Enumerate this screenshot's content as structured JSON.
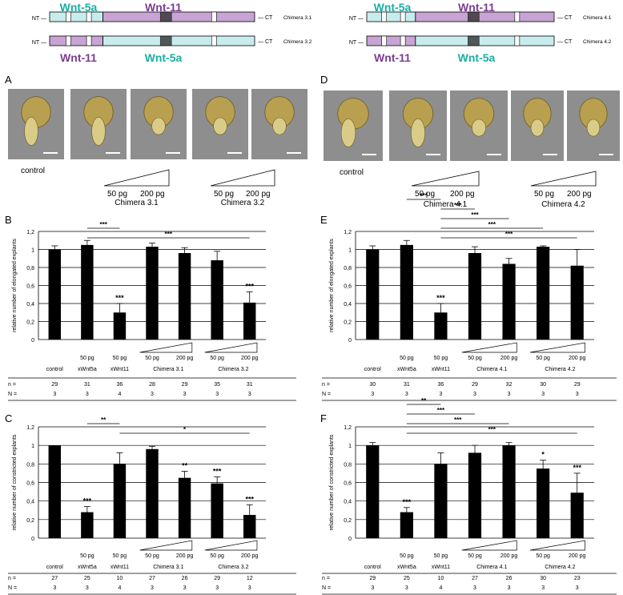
{
  "colors": {
    "wnt5a": "#1aaea0",
    "wnt11": "#7a3d91",
    "wnt5a_fill": "#c8ecec",
    "wnt11_fill": "#c7a4d3",
    "bar": "#000000",
    "photo_bg": "#8e8e8e"
  },
  "constructs": {
    "nt": "NT",
    "ct": "CT",
    "wnt5a": "Wnt-5a",
    "wnt11": "Wnt-11",
    "chimera_31": "Chimera 3.1",
    "chimera_32": "Chimera 3.2",
    "chimera_41": "Chimera 4.1",
    "chimera_42": "Chimera 4.2"
  },
  "photo_panels": [
    {
      "letter": "A",
      "control": "control",
      "groups": [
        {
          "low": "50 pg",
          "high": "200 pg",
          "name": "Chimera 3.1"
        },
        {
          "low": "50 pg",
          "high": "200 pg",
          "name": "Chimera 3.2"
        }
      ]
    },
    {
      "letter": "D",
      "control": "control",
      "groups": [
        {
          "low": "50 pg",
          "high": "200 pg",
          "name": "Chimera 4.1"
        },
        {
          "low": "50 pg",
          "high": "200 pg",
          "name": "Chimera 4.2"
        }
      ]
    }
  ],
  "table_labels": {
    "n": "n =",
    "N": "N ="
  },
  "chart_data": [
    {
      "panel": "B",
      "type": "bar",
      "ylabel": "relative number of elongated explants",
      "ylim": [
        0,
        1.2
      ],
      "yticks": [
        "0",
        "0,2",
        "0,4",
        "0,6",
        "0,8",
        "1",
        "1,2"
      ],
      "grid": true,
      "categories": [
        "control",
        "xWnt5a",
        "xWnt11",
        "Chimera 3.1",
        "Chimera 3.1",
        "Chimera 3.2",
        "Chimera 3.2"
      ],
      "dose_labels": [
        "",
        "50 pg",
        "50 pg",
        "50 pg",
        "200 pg",
        "50 pg",
        "200 pg"
      ],
      "group_labels": [
        "control",
        "xWnt5a",
        "xWnt11",
        "Chimera 3.1",
        "Chimera 3.2"
      ],
      "values": [
        1.0,
        1.05,
        0.3,
        1.03,
        0.96,
        0.88,
        0.41
      ],
      "errors": [
        0.04,
        0.05,
        0.1,
        0.04,
        0.06,
        0.1,
        0.12
      ],
      "sig": [
        "",
        "",
        "***",
        "",
        "",
        "",
        "***"
      ],
      "brackets": [
        {
          "from": 1,
          "to": 2,
          "label": "***"
        },
        {
          "from": 1,
          "to": 6,
          "label": "***"
        }
      ],
      "n": [
        "29",
        "31",
        "36",
        "28",
        "29",
        "35",
        "31"
      ],
      "N": [
        "3",
        "3",
        "4",
        "3",
        "3",
        "3",
        "3"
      ]
    },
    {
      "panel": "E",
      "type": "bar",
      "ylabel": "relative number of elongated explants",
      "ylim": [
        0,
        1.2
      ],
      "yticks": [
        "0",
        "0,2",
        "0,4",
        "0,6",
        "0,8",
        "1",
        "1,2"
      ],
      "grid": true,
      "categories": [
        "control",
        "xWnt5a",
        "xWnt11",
        "Chimera 4.1",
        "Chimera 4.1",
        "Chimera 4.2",
        "Chimera 4.2"
      ],
      "dose_labels": [
        "",
        "50 pg",
        "50 pg",
        "50 pg",
        "200 pg",
        "50 pg",
        "200 pg"
      ],
      "group_labels": [
        "control",
        "xWnt5a",
        "xWnt11",
        "Chimera 4.1",
        "Chimera 4.2"
      ],
      "values": [
        1.0,
        1.05,
        0.3,
        0.96,
        0.84,
        1.03,
        0.82
      ],
      "errors": [
        0.04,
        0.05,
        0.1,
        0.07,
        0.06,
        0.01,
        0.18
      ],
      "sig": [
        "",
        "",
        "***",
        "",
        "",
        "",
        ""
      ],
      "brackets": [
        {
          "from": 1,
          "to": 2,
          "label": "***"
        },
        {
          "from": 2,
          "to": 3,
          "label": "***"
        },
        {
          "from": 2,
          "to": 4,
          "label": "***"
        },
        {
          "from": 2,
          "to": 5,
          "label": "***"
        },
        {
          "from": 2,
          "to": 6,
          "label": "***"
        }
      ],
      "n": [
        "30",
        "31",
        "36",
        "29",
        "32",
        "30",
        "29"
      ],
      "N": [
        "3",
        "3",
        "3",
        "3",
        "3",
        "3",
        "3"
      ]
    },
    {
      "panel": "C",
      "type": "bar",
      "ylabel": "relative number of constricted explants",
      "ylim": [
        0,
        1.2
      ],
      "yticks": [
        "0",
        "0,2",
        "0,4",
        "0,6",
        "0,8",
        "1",
        "1,2"
      ],
      "grid": true,
      "categories": [
        "control",
        "xWnt5a",
        "xWnt11",
        "Chimera 3.1",
        "Chimera 3.1",
        "Chimera 3.2",
        "Chimera 3.2"
      ],
      "dose_labels": [
        "",
        "50 pg",
        "50 pg",
        "50 pg",
        "200 pg",
        "50 pg",
        "200 pg"
      ],
      "group_labels": [
        "control",
        "xWnt5a",
        "xWnt11",
        "Chimera 3.1",
        "Chimera 3.2"
      ],
      "values": [
        1.0,
        0.28,
        0.8,
        0.96,
        0.65,
        0.59,
        0.25
      ],
      "errors": [
        0.0,
        0.06,
        0.12,
        0.03,
        0.07,
        0.07,
        0.11
      ],
      "sig": [
        "",
        "***",
        "",
        "",
        "**",
        "***",
        "***"
      ],
      "brackets": [
        {
          "from": 1,
          "to": 2,
          "label": "**"
        },
        {
          "from": 2,
          "to": 6,
          "label": "*"
        }
      ],
      "n": [
        "27",
        "25",
        "10",
        "27",
        "26",
        "29",
        "12"
      ],
      "N": [
        "3",
        "3",
        "4",
        "3",
        "3",
        "3",
        "3"
      ]
    },
    {
      "panel": "F",
      "type": "bar",
      "ylabel": "relative number of constricted explants",
      "ylim": [
        0,
        1.2
      ],
      "yticks": [
        "0",
        "0,2",
        "0,4",
        "0,6",
        "0,8",
        "1",
        "1,2"
      ],
      "grid": true,
      "categories": [
        "control",
        "xWnt5a",
        "xWnt11",
        "Chimera 4.1",
        "Chimera 4.1",
        "Chimera 4.2",
        "Chimera 4.2"
      ],
      "dose_labels": [
        "",
        "50 pg",
        "50 pg",
        "50 pg",
        "200 pg",
        "50 pg",
        "200 pg"
      ],
      "group_labels": [
        "control",
        "xWnt5a",
        "xWnt11",
        "Chimera 4.1",
        "Chimera 4.2"
      ],
      "values": [
        1.0,
        0.28,
        0.8,
        0.92,
        1.0,
        0.75,
        0.49
      ],
      "errors": [
        0.03,
        0.05,
        0.12,
        0.08,
        0.03,
        0.09,
        0.21
      ],
      "sig": [
        "",
        "***",
        "",
        "",
        "",
        "*",
        "***"
      ],
      "brackets": [
        {
          "from": 1,
          "to": 2,
          "label": "**"
        },
        {
          "from": 1,
          "to": 3,
          "label": "***"
        },
        {
          "from": 1,
          "to": 4,
          "label": "***"
        },
        {
          "from": 1,
          "to": 6,
          "label": "***"
        }
      ],
      "n": [
        "29",
        "25",
        "10",
        "27",
        "26",
        "30",
        "23"
      ],
      "N": [
        "3",
        "3",
        "4",
        "3",
        "3",
        "3",
        "3"
      ]
    }
  ]
}
